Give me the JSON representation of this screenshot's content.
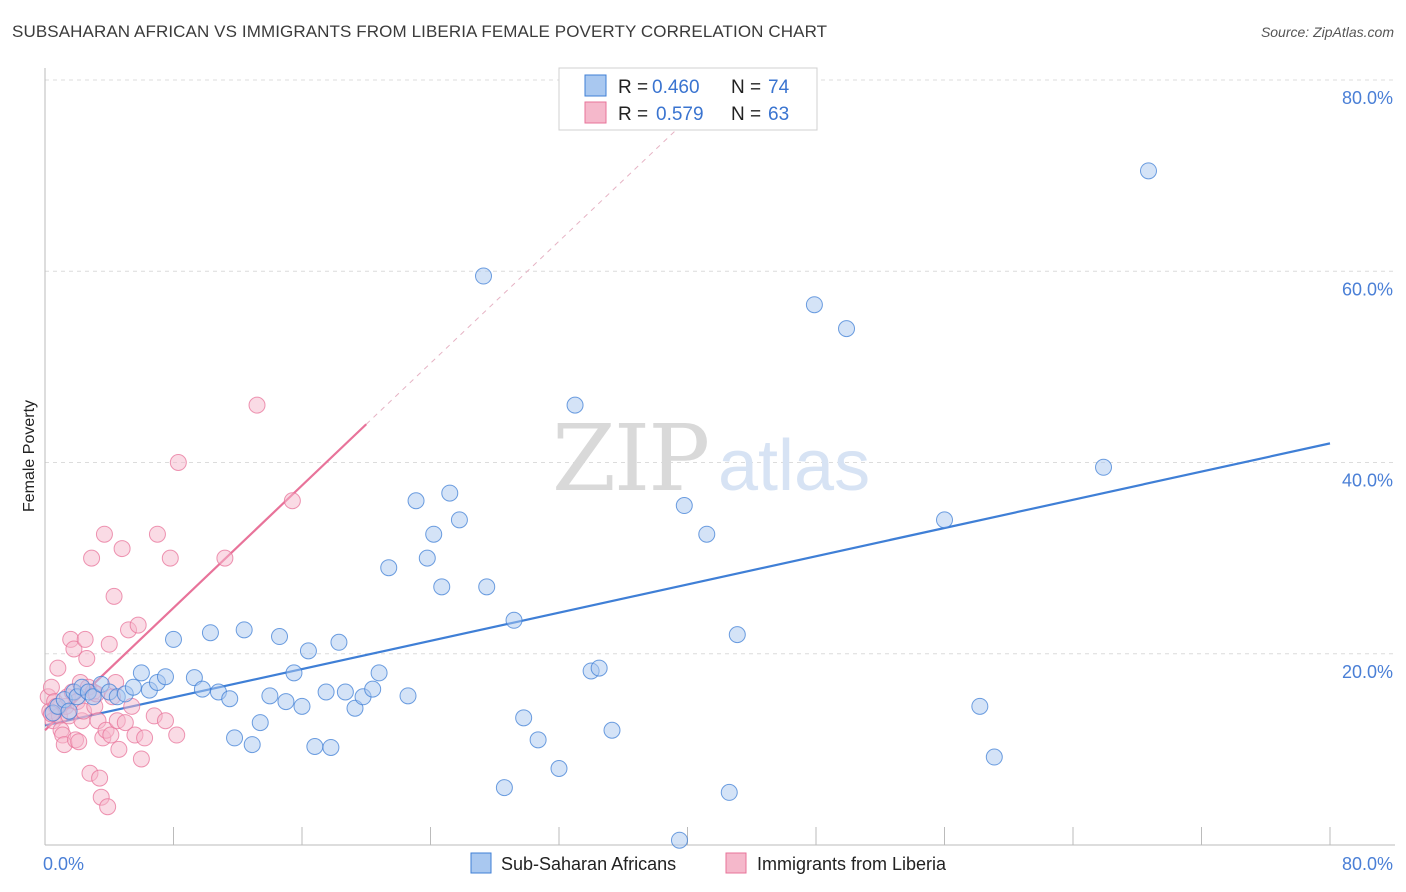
{
  "title": "SUBSAHARAN AFRICAN VS IMMIGRANTS FROM LIBERIA FEMALE POVERTY CORRELATION CHART",
  "source": "Source: ZipAtlas.com",
  "watermark": {
    "zip": "ZIP",
    "atlas": "atlas"
  },
  "colors": {
    "blue": "#3f7fd6",
    "blue_fill": "#a9c8f0",
    "pink": "#e8739a",
    "pink_fill": "#f5b8cb",
    "grid": "#dcdcdc",
    "tick_text": "#4a7fd6"
  },
  "legend": {
    "r_label": "R =",
    "n_label": "N =",
    "rows": [
      {
        "series": "blue",
        "r": "0.460",
        "n": "74"
      },
      {
        "series": "pink",
        "r": "0.579",
        "n": "63"
      }
    ]
  },
  "chart_data": {
    "type": "scatter",
    "title": "SUBSAHARAN AFRICAN VS IMMIGRANTS FROM LIBERIA FEMALE POVERTY CORRELATION CHART",
    "xlabel": "",
    "ylabel": "Female Poverty",
    "xlim": [
      0,
      80
    ],
    "ylim": [
      0,
      80
    ],
    "x_tick_labels": [
      "0.0%",
      "80.0%"
    ],
    "y_ticks": [
      20,
      40,
      60,
      80
    ],
    "y_tick_labels": [
      "20.0%",
      "40.0%",
      "60.0%",
      "80.0%"
    ],
    "grid": true,
    "series": [
      {
        "name": "Sub-Saharan Africans",
        "color": "blue",
        "trend": {
          "x0": 0,
          "y0": 12.5,
          "x1": 80,
          "y1": 42.0
        },
        "points": [
          [
            0.5,
            13.8
          ],
          [
            0.8,
            14.5
          ],
          [
            1.2,
            15.2
          ],
          [
            1.5,
            14.0
          ],
          [
            1.8,
            16.0
          ],
          [
            2.0,
            15.5
          ],
          [
            2.3,
            16.5
          ],
          [
            2.7,
            16.0
          ],
          [
            3.0,
            15.5
          ],
          [
            3.5,
            16.8
          ],
          [
            4.0,
            16.0
          ],
          [
            4.5,
            15.5
          ],
          [
            5.0,
            15.8
          ],
          [
            5.5,
            16.5
          ],
          [
            6.0,
            18.0
          ],
          [
            6.5,
            16.2
          ],
          [
            7.0,
            17.0
          ],
          [
            7.5,
            17.6
          ],
          [
            8.0,
            21.5
          ],
          [
            9.3,
            17.5
          ],
          [
            9.8,
            16.3
          ],
          [
            10.3,
            22.2
          ],
          [
            10.8,
            16.0
          ],
          [
            11.5,
            15.3
          ],
          [
            11.8,
            11.2
          ],
          [
            12.4,
            22.5
          ],
          [
            12.9,
            10.5
          ],
          [
            13.4,
            12.8
          ],
          [
            14.0,
            15.6
          ],
          [
            14.6,
            21.8
          ],
          [
            15.0,
            15.0
          ],
          [
            15.5,
            18.0
          ],
          [
            16.0,
            14.5
          ],
          [
            16.4,
            20.3
          ],
          [
            16.8,
            10.3
          ],
          [
            17.5,
            16.0
          ],
          [
            17.8,
            10.2
          ],
          [
            18.3,
            21.2
          ],
          [
            18.7,
            16.0
          ],
          [
            19.3,
            14.3
          ],
          [
            19.8,
            15.5
          ],
          [
            20.4,
            16.3
          ],
          [
            20.8,
            18.0
          ],
          [
            21.4,
            29.0
          ],
          [
            22.6,
            15.6
          ],
          [
            23.1,
            36.0
          ],
          [
            23.8,
            30.0
          ],
          [
            24.2,
            32.5
          ],
          [
            24.7,
            27.0
          ],
          [
            25.2,
            36.8
          ],
          [
            25.8,
            34.0
          ],
          [
            27.3,
            59.5
          ],
          [
            27.5,
            27.0
          ],
          [
            28.6,
            6.0
          ],
          [
            29.2,
            23.5
          ],
          [
            29.8,
            13.3
          ],
          [
            30.7,
            11.0
          ],
          [
            32.0,
            8.0
          ],
          [
            33.0,
            46.0
          ],
          [
            34.0,
            18.2
          ],
          [
            34.5,
            18.5
          ],
          [
            35.3,
            12.0
          ],
          [
            39.5,
            0.5
          ],
          [
            39.8,
            35.5
          ],
          [
            41.2,
            32.5
          ],
          [
            42.6,
            5.5
          ],
          [
            43.1,
            22.0
          ],
          [
            47.9,
            56.5
          ],
          [
            49.9,
            54.0
          ],
          [
            56.0,
            34.0
          ],
          [
            58.2,
            14.5
          ],
          [
            59.1,
            9.2
          ],
          [
            65.9,
            39.5
          ],
          [
            68.7,
            70.5
          ]
        ]
      },
      {
        "name": "Immigrants from Liberia",
        "color": "pink",
        "trend": {
          "x0": 0,
          "y0": 12.0,
          "x1": 20,
          "y1": 44.0,
          "dashed_to": {
            "x": 41,
            "y": 77.5
          }
        },
        "points": [
          [
            0.2,
            15.5
          ],
          [
            0.3,
            14.0
          ],
          [
            0.4,
            16.5
          ],
          [
            0.5,
            13.0
          ],
          [
            0.6,
            15.0
          ],
          [
            0.7,
            14.5
          ],
          [
            0.8,
            18.5
          ],
          [
            0.9,
            13.5
          ],
          [
            1.0,
            12.0
          ],
          [
            1.1,
            11.5
          ],
          [
            1.2,
            10.5
          ],
          [
            1.3,
            14.5
          ],
          [
            1.4,
            15.5
          ],
          [
            1.5,
            13.5
          ],
          [
            1.6,
            21.5
          ],
          [
            1.7,
            16.0
          ],
          [
            1.8,
            20.5
          ],
          [
            1.9,
            11.0
          ],
          [
            2.0,
            15.0
          ],
          [
            2.1,
            10.8
          ],
          [
            2.2,
            17.0
          ],
          [
            2.3,
            13.0
          ],
          [
            2.4,
            14.0
          ],
          [
            2.5,
            21.5
          ],
          [
            2.6,
            19.5
          ],
          [
            2.7,
            16.5
          ],
          [
            2.8,
            7.5
          ],
          [
            2.9,
            30.0
          ],
          [
            3.0,
            16.0
          ],
          [
            3.1,
            14.5
          ],
          [
            3.2,
            15.8
          ],
          [
            3.3,
            13.0
          ],
          [
            3.4,
            7.0
          ],
          [
            3.5,
            5.0
          ],
          [
            3.6,
            11.2
          ],
          [
            3.7,
            32.5
          ],
          [
            3.8,
            12.0
          ],
          [
            3.9,
            4.0
          ],
          [
            4.0,
            21.0
          ],
          [
            4.1,
            11.5
          ],
          [
            4.2,
            15.5
          ],
          [
            4.3,
            26.0
          ],
          [
            4.4,
            17.0
          ],
          [
            4.5,
            13.0
          ],
          [
            4.6,
            10.0
          ],
          [
            4.8,
            31.0
          ],
          [
            5.0,
            12.8
          ],
          [
            5.2,
            22.5
          ],
          [
            5.4,
            14.5
          ],
          [
            5.6,
            11.5
          ],
          [
            5.8,
            23.0
          ],
          [
            6.0,
            9.0
          ],
          [
            6.2,
            11.2
          ],
          [
            6.8,
            13.5
          ],
          [
            7.0,
            32.5
          ],
          [
            7.5,
            13.0
          ],
          [
            7.8,
            30.0
          ],
          [
            8.2,
            11.5
          ],
          [
            8.3,
            40.0
          ],
          [
            11.2,
            30.0
          ],
          [
            13.2,
            46.0
          ],
          [
            15.4,
            36.0
          ],
          [
            0.4,
            13.7
          ]
        ]
      }
    ]
  },
  "bottom_legend": [
    {
      "label": "Sub-Saharan Africans",
      "color": "blue"
    },
    {
      "label": "Immigrants from Liberia",
      "color": "pink"
    }
  ]
}
